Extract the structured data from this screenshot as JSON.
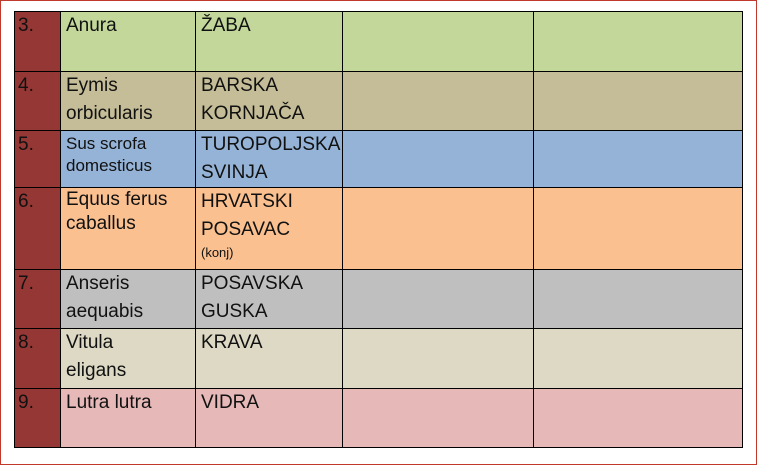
{
  "colors": {
    "number_column": "#953735",
    "border": "#c0392b"
  },
  "rows": [
    {
      "num": "3.",
      "latin": [
        "Anura"
      ],
      "name": [
        "ŽABA"
      ],
      "note": "",
      "bg": "#c4d79b"
    },
    {
      "num": "4.",
      "latin": [
        "Eymis",
        "orbicularis"
      ],
      "name": [
        "BARSKA",
        "KORNJAČA"
      ],
      "note": "",
      "bg": "#c4bd97"
    },
    {
      "num": "5.",
      "latin": [
        "Sus scrofa",
        "domesticus"
      ],
      "name": [
        "TUROPOLJSKA",
        "SVINJA"
      ],
      "note": "",
      "bg": "#95b3d7"
    },
    {
      "num": "6.",
      "latin": [
        "Equus ferus",
        "caballus"
      ],
      "name": [
        "HRVATSKI",
        "POSAVAC"
      ],
      "note": "(konj)",
      "bg": "#fac090"
    },
    {
      "num": "7.",
      "latin": [
        "Anseris",
        "aequabis"
      ],
      "name": [
        "POSAVSKA",
        "GUSKA"
      ],
      "note": "",
      "bg": "#bfbfbf"
    },
    {
      "num": "8.",
      "latin": [
        "Vitula",
        "eligans"
      ],
      "name": [
        "KRAVA"
      ],
      "note": "",
      "bg": "#ddd9c4"
    },
    {
      "num": "9.",
      "latin": [
        "Lutra lutra"
      ],
      "name": [
        "VIDRA"
      ],
      "note": "",
      "bg": "#e6b9b8"
    }
  ]
}
